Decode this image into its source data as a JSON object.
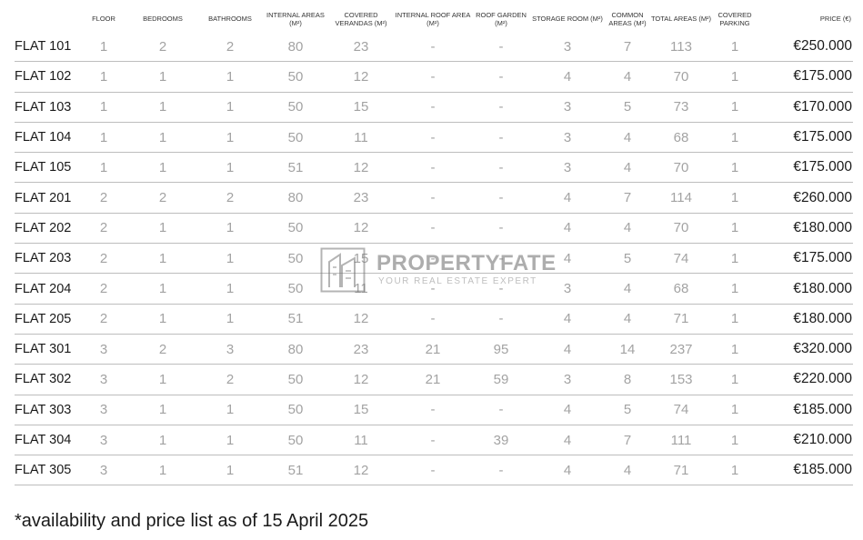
{
  "columns": [
    {
      "key": "name",
      "label": ""
    },
    {
      "key": "floor",
      "label": "FLOOR"
    },
    {
      "key": "bedrooms",
      "label": "BEDROOMS"
    },
    {
      "key": "bathrooms",
      "label": "BATHROOMS"
    },
    {
      "key": "internal",
      "label": "INTERNAL AREAS (M²)"
    },
    {
      "key": "verandas",
      "label": "COVERED VERANDAS (M²)"
    },
    {
      "key": "roof_area",
      "label": "INTERNAL ROOF AREA (M²)"
    },
    {
      "key": "roof_garden",
      "label": "ROOF GARDEN (M²)"
    },
    {
      "key": "storage",
      "label": "STORAGE ROOM (M²)"
    },
    {
      "key": "common",
      "label": "COMMON AREAS (M²)"
    },
    {
      "key": "total",
      "label": "TOTAL AREAS (M²)"
    },
    {
      "key": "parking",
      "label": "COVERED PARKING"
    },
    {
      "key": "price",
      "label": "PRICE (€)"
    }
  ],
  "rows": [
    {
      "name": "FLAT 101",
      "floor": "1",
      "bedrooms": "2",
      "bathrooms": "2",
      "internal": "80",
      "verandas": "23",
      "roof_area": "-",
      "roof_garden": "-",
      "storage": "3",
      "common": "7",
      "total": "113",
      "parking": "1",
      "price": "€250.000"
    },
    {
      "name": "FLAT 102",
      "floor": "1",
      "bedrooms": "1",
      "bathrooms": "1",
      "internal": "50",
      "verandas": "12",
      "roof_area": "-",
      "roof_garden": "-",
      "storage": "4",
      "common": "4",
      "total": "70",
      "parking": "1",
      "price": "€175.000"
    },
    {
      "name": "FLAT 103",
      "floor": "1",
      "bedrooms": "1",
      "bathrooms": "1",
      "internal": "50",
      "verandas": "15",
      "roof_area": "-",
      "roof_garden": "-",
      "storage": "3",
      "common": "5",
      "total": "73",
      "parking": "1",
      "price": "€170.000"
    },
    {
      "name": "FLAT 104",
      "floor": "1",
      "bedrooms": "1",
      "bathrooms": "1",
      "internal": "50",
      "verandas": "11",
      "roof_area": "-",
      "roof_garden": "-",
      "storage": "3",
      "common": "4",
      "total": "68",
      "parking": "1",
      "price": "€175.000"
    },
    {
      "name": "FLAT 105",
      "floor": "1",
      "bedrooms": "1",
      "bathrooms": "1",
      "internal": "51",
      "verandas": "12",
      "roof_area": "-",
      "roof_garden": "-",
      "storage": "3",
      "common": "4",
      "total": "70",
      "parking": "1",
      "price": "€175.000"
    },
    {
      "name": "FLAT 201",
      "floor": "2",
      "bedrooms": "2",
      "bathrooms": "2",
      "internal": "80",
      "verandas": "23",
      "roof_area": "-",
      "roof_garden": "-",
      "storage": "4",
      "common": "7",
      "total": "114",
      "parking": "1",
      "price": "€260.000"
    },
    {
      "name": "FLAT 202",
      "floor": "2",
      "bedrooms": "1",
      "bathrooms": "1",
      "internal": "50",
      "verandas": "12",
      "roof_area": "-",
      "roof_garden": "-",
      "storage": "4",
      "common": "4",
      "total": "70",
      "parking": "1",
      "price": "€180.000"
    },
    {
      "name": "FLAT 203",
      "floor": "2",
      "bedrooms": "1",
      "bathrooms": "1",
      "internal": "50",
      "verandas": "15",
      "roof_area": "-",
      "roof_garden": "-",
      "storage": "4",
      "common": "5",
      "total": "74",
      "parking": "1",
      "price": "€175.000"
    },
    {
      "name": "FLAT 204",
      "floor": "2",
      "bedrooms": "1",
      "bathrooms": "1",
      "internal": "50",
      "verandas": "11",
      "roof_area": "-",
      "roof_garden": "-",
      "storage": "3",
      "common": "4",
      "total": "68",
      "parking": "1",
      "price": "€180.000"
    },
    {
      "name": "FLAT 205",
      "floor": "2",
      "bedrooms": "1",
      "bathrooms": "1",
      "internal": "51",
      "verandas": "12",
      "roof_area": "-",
      "roof_garden": "-",
      "storage": "4",
      "common": "4",
      "total": "71",
      "parking": "1",
      "price": "€180.000"
    },
    {
      "name": "FLAT 301",
      "floor": "3",
      "bedrooms": "2",
      "bathrooms": "3",
      "internal": "80",
      "verandas": "23",
      "roof_area": "21",
      "roof_garden": "95",
      "storage": "4",
      "common": "14",
      "total": "237",
      "parking": "1",
      "price": "€320.000"
    },
    {
      "name": "FLAT 302",
      "floor": "3",
      "bedrooms": "1",
      "bathrooms": "2",
      "internal": "50",
      "verandas": "12",
      "roof_area": "21",
      "roof_garden": "59",
      "storage": "3",
      "common": "8",
      "total": "153",
      "parking": "1",
      "price": "€220.000"
    },
    {
      "name": "FLAT 303",
      "floor": "3",
      "bedrooms": "1",
      "bathrooms": "1",
      "internal": "50",
      "verandas": "15",
      "roof_area": "-",
      "roof_garden": "-",
      "storage": "4",
      "common": "5",
      "total": "74",
      "parking": "1",
      "price": "€185.000"
    },
    {
      "name": "FLAT 304",
      "floor": "3",
      "bedrooms": "1",
      "bathrooms": "1",
      "internal": "50",
      "verandas": "11",
      "roof_area": "-",
      "roof_garden": "39",
      "storage": "4",
      "common": "7",
      "total": "111",
      "parking": "1",
      "price": "€210.000"
    },
    {
      "name": "FLAT 305",
      "floor": "3",
      "bedrooms": "1",
      "bathrooms": "1",
      "internal": "51",
      "verandas": "12",
      "roof_area": "-",
      "roof_garden": "-",
      "storage": "4",
      "common": "4",
      "total": "71",
      "parking": "1",
      "price": "€185.000"
    }
  ],
  "footnote": "*availability and price list as of 15 April 2025",
  "watermark": {
    "brand": "PROPERTYFATE",
    "tagline": "YOUR REAL ESTATE EXPERT"
  },
  "colors": {
    "dark_text": "#1a1a1a",
    "muted_text": "#a3a3a3",
    "rule": "#bdbdbd"
  }
}
